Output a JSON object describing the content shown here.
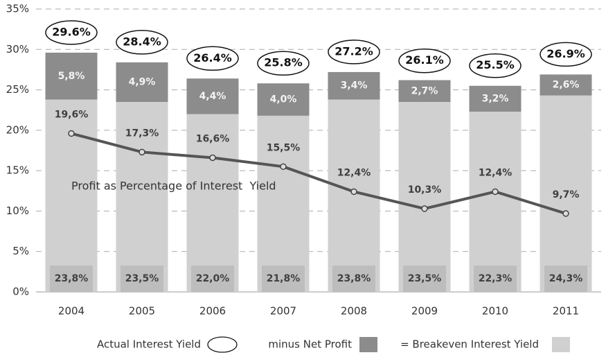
{
  "chart_data": {
    "type": "bar",
    "categories": [
      "2004",
      "2005",
      "2006",
      "2007",
      "2008",
      "2009",
      "2010",
      "2011"
    ],
    "ylim": [
      0,
      35
    ],
    "yticks": [
      {
        "value": 0,
        "label": "0%"
      },
      {
        "value": 5,
        "label": "5%"
      },
      {
        "value": 10,
        "label": "10%"
      },
      {
        "value": 15,
        "label": "15%"
      },
      {
        "value": 20,
        "label": "20%"
      },
      {
        "value": 25,
        "label": "25%"
      },
      {
        "value": 30,
        "label": "30%"
      },
      {
        "value": 35,
        "label": "35%"
      }
    ],
    "grid": true,
    "legend": "bottom",
    "series": [
      {
        "name": "= Breakeven Interest Yield",
        "type": "bar",
        "color": "#d0d0d0",
        "values": [
          23.8,
          23.5,
          22.0,
          21.8,
          23.8,
          23.5,
          22.3,
          24.3
        ],
        "value_labels": [
          "23,8%",
          "23,5%",
          "22,0%",
          "21,8%",
          "23,8%",
          "23,5%",
          "22,3%",
          "24,3%"
        ]
      },
      {
        "name": "minus Net Profit",
        "type": "bar",
        "color": "#8c8c8c",
        "values": [
          5.8,
          4.9,
          4.4,
          4.0,
          3.4,
          2.7,
          3.2,
          2.6
        ],
        "value_labels": [
          "5,8%",
          "4,9%",
          "4,4%",
          "4,0%",
          "3,4%",
          "2,7%",
          "3,2%",
          "2,6%"
        ]
      },
      {
        "name": "Actual Interest Yield",
        "type": "label",
        "values": [
          29.6,
          28.4,
          26.4,
          25.8,
          27.2,
          26.1,
          25.5,
          26.9
        ],
        "value_labels": [
          "29.6%",
          "28.4%",
          "26.4%",
          "25.8%",
          "27.2%",
          "26.1%",
          "25.5%",
          "26.9%"
        ]
      },
      {
        "name": "Profit as Percentage of Interest  Yield",
        "type": "line",
        "color": "#555555",
        "values": [
          19.6,
          17.3,
          16.6,
          15.5,
          12.4,
          10.3,
          12.4,
          9.7
        ],
        "value_labels": [
          "19,6%",
          "17,3%",
          "16,6%",
          "15,5%",
          "12,4%",
          "10,3%",
          "12,4%",
          "9,7%"
        ]
      }
    ]
  }
}
